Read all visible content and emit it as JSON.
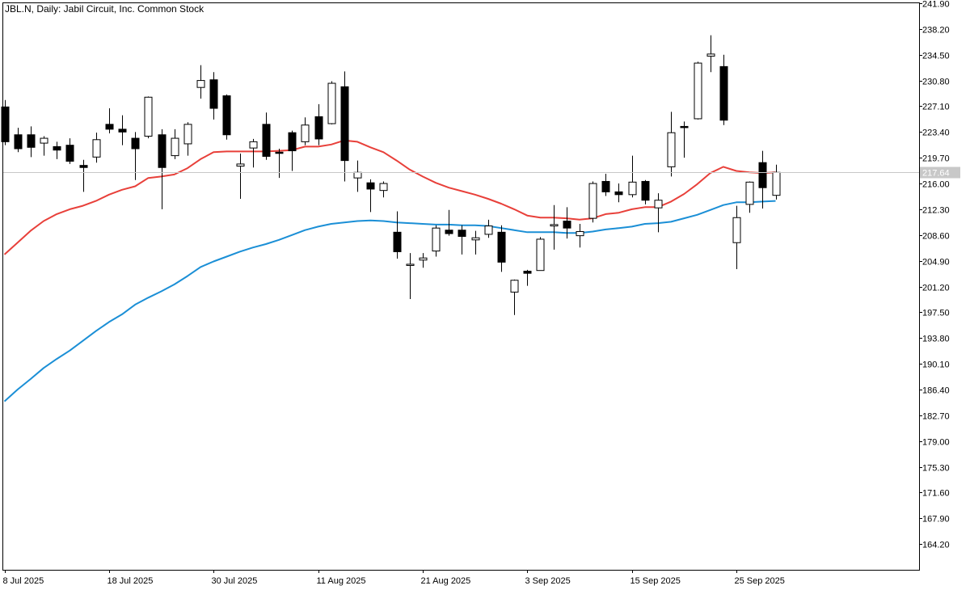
{
  "chart_data": {
    "type": "candlestick",
    "title": "JBL.N, Daily:  Jabil Circuit, Inc. Common Stock",
    "current_price": 217.64,
    "y_ticks": [
      "241.90",
      "238.20",
      "234.50",
      "230.80",
      "227.10",
      "223.40",
      "219.70",
      "216.00",
      "212.30",
      "208.60",
      "204.90",
      "201.20",
      "197.50",
      "193.80",
      "190.10",
      "186.40",
      "182.70",
      "179.00",
      "175.30",
      "171.60",
      "167.90",
      "164.20"
    ],
    "ylim": [
      160.5,
      241.9
    ],
    "x_labels": [
      {
        "index": 0,
        "label": "8 Jul 2025"
      },
      {
        "index": 8,
        "label": "18 Jul 2025"
      },
      {
        "index": 16,
        "label": "30 Jul 2025"
      },
      {
        "index": 24,
        "label": "11 Aug 2025"
      },
      {
        "index": 32,
        "label": "21 Aug 2025"
      },
      {
        "index": 40,
        "label": "3 Sep 2025"
      },
      {
        "index": 48,
        "label": "15 Sep 2025"
      },
      {
        "index": 56,
        "label": "25 Sep 2025"
      }
    ],
    "candles": [
      {
        "o": 227.0,
        "h": 228.0,
        "l": 221.5,
        "c": 222.0
      },
      {
        "o": 223.0,
        "h": 224.0,
        "l": 220.5,
        "c": 221.0
      },
      {
        "o": 223.0,
        "h": 224.2,
        "l": 219.8,
        "c": 221.2
      },
      {
        "o": 221.8,
        "h": 222.8,
        "l": 220.0,
        "c": 222.5
      },
      {
        "o": 221.3,
        "h": 222.0,
        "l": 219.5,
        "c": 220.8
      },
      {
        "o": 221.5,
        "h": 222.5,
        "l": 218.8,
        "c": 219.2
      },
      {
        "o": 218.6,
        "h": 219.4,
        "l": 214.8,
        "c": 218.3
      },
      {
        "o": 219.8,
        "h": 223.3,
        "l": 219.0,
        "c": 222.3
      },
      {
        "o": 224.5,
        "h": 226.8,
        "l": 223.2,
        "c": 223.8
      },
      {
        "o": 223.8,
        "h": 225.8,
        "l": 221.5,
        "c": 223.4
      },
      {
        "o": 222.5,
        "h": 223.4,
        "l": 216.5,
        "c": 221.0
      },
      {
        "o": 222.8,
        "h": 228.5,
        "l": 222.5,
        "c": 228.4
      },
      {
        "o": 223.0,
        "h": 223.8,
        "l": 212.3,
        "c": 218.3
      },
      {
        "o": 220.0,
        "h": 223.8,
        "l": 219.5,
        "c": 222.5
      },
      {
        "o": 221.7,
        "h": 224.8,
        "l": 220.0,
        "c": 224.5
      },
      {
        "o": 229.8,
        "h": 233.0,
        "l": 228.2,
        "c": 230.8
      },
      {
        "o": 230.9,
        "h": 232.0,
        "l": 225.2,
        "c": 226.8
      },
      {
        "o": 228.6,
        "h": 228.8,
        "l": 222.3,
        "c": 223.0
      },
      {
        "o": 218.5,
        "h": 220.3,
        "l": 213.8,
        "c": 218.8
      },
      {
        "o": 221.1,
        "h": 222.4,
        "l": 218.3,
        "c": 222.0
      },
      {
        "o": 224.5,
        "h": 226.2,
        "l": 219.4,
        "c": 219.9
      },
      {
        "o": 220.5,
        "h": 221.0,
        "l": 216.8,
        "c": 220.4
      },
      {
        "o": 223.3,
        "h": 223.6,
        "l": 217.8,
        "c": 220.7
      },
      {
        "o": 222.0,
        "h": 225.5,
        "l": 221.5,
        "c": 224.4
      },
      {
        "o": 225.6,
        "h": 227.4,
        "l": 221.5,
        "c": 222.4
      },
      {
        "o": 224.6,
        "h": 230.7,
        "l": 224.5,
        "c": 230.4
      },
      {
        "o": 229.9,
        "h": 232.1,
        "l": 216.3,
        "c": 219.3
      },
      {
        "o": 216.8,
        "h": 219.3,
        "l": 214.8,
        "c": 217.6
      },
      {
        "o": 216.1,
        "h": 216.6,
        "l": 211.9,
        "c": 215.2
      },
      {
        "o": 215.0,
        "h": 216.3,
        "l": 214.0,
        "c": 216.0
      },
      {
        "o": 209.0,
        "h": 212.0,
        "l": 205.2,
        "c": 206.2
      },
      {
        "o": 204.4,
        "h": 206.0,
        "l": 199.4,
        "c": 204.4
      },
      {
        "o": 205.0,
        "h": 206.0,
        "l": 203.9,
        "c": 205.3
      },
      {
        "o": 206.3,
        "h": 210.0,
        "l": 205.5,
        "c": 209.6
      },
      {
        "o": 209.3,
        "h": 212.2,
        "l": 208.5,
        "c": 208.8
      },
      {
        "o": 209.3,
        "h": 210.0,
        "l": 205.8,
        "c": 208.4
      },
      {
        "o": 207.9,
        "h": 209.2,
        "l": 205.8,
        "c": 208.2
      },
      {
        "o": 208.7,
        "h": 210.8,
        "l": 208.2,
        "c": 209.9
      },
      {
        "o": 209.0,
        "h": 210.0,
        "l": 203.3,
        "c": 204.7
      },
      {
        "o": 200.4,
        "h": 202.2,
        "l": 197.1,
        "c": 202.1
      },
      {
        "o": 203.4,
        "h": 203.6,
        "l": 201.3,
        "c": 203.1
      },
      {
        "o": 203.5,
        "h": 208.3,
        "l": 203.5,
        "c": 208.0
      },
      {
        "o": 209.9,
        "h": 212.9,
        "l": 206.5,
        "c": 210.1
      },
      {
        "o": 210.6,
        "h": 212.6,
        "l": 208.1,
        "c": 209.6
      },
      {
        "o": 208.5,
        "h": 210.2,
        "l": 206.8,
        "c": 209.1
      },
      {
        "o": 211.0,
        "h": 216.3,
        "l": 210.4,
        "c": 216.0
      },
      {
        "o": 216.3,
        "h": 217.4,
        "l": 214.2,
        "c": 214.8
      },
      {
        "o": 214.8,
        "h": 216.0,
        "l": 213.3,
        "c": 214.4
      },
      {
        "o": 214.4,
        "h": 220.0,
        "l": 214.0,
        "c": 216.2
      },
      {
        "o": 216.3,
        "h": 216.5,
        "l": 213.0,
        "c": 213.6
      },
      {
        "o": 212.5,
        "h": 214.6,
        "l": 209.0,
        "c": 213.6
      },
      {
        "o": 218.4,
        "h": 226.3,
        "l": 217.0,
        "c": 223.3
      },
      {
        "o": 224.2,
        "h": 224.9,
        "l": 219.7,
        "c": 224.1
      },
      {
        "o": 225.3,
        "h": 233.5,
        "l": 225.2,
        "c": 233.3
      },
      {
        "o": 234.3,
        "h": 237.3,
        "l": 232.0,
        "c": 234.6
      },
      {
        "o": 232.8,
        "h": 234.5,
        "l": 224.4,
        "c": 225.1
      },
      {
        "o": 207.5,
        "h": 212.8,
        "l": 203.7,
        "c": 211.1
      },
      {
        "o": 213.0,
        "h": 216.3,
        "l": 211.8,
        "c": 216.2
      },
      {
        "o": 219.0,
        "h": 220.7,
        "l": 212.4,
        "c": 215.4
      },
      {
        "o": 214.3,
        "h": 218.7,
        "l": 213.7,
        "c": 217.6
      }
    ],
    "ma_fast": {
      "color": "#e8403a",
      "values": [
        205.8,
        207.5,
        209.2,
        210.6,
        211.6,
        212.3,
        212.8,
        213.5,
        214.4,
        215.1,
        215.6,
        216.8,
        217.0,
        217.3,
        218.2,
        219.5,
        220.5,
        220.6,
        220.6,
        220.6,
        220.6,
        220.7,
        220.8,
        221.3,
        221.3,
        221.6,
        222.2,
        222.0,
        221.2,
        220.5,
        219.3,
        218.0,
        217.0,
        216.1,
        215.4,
        214.9,
        214.4,
        213.8,
        213.1,
        212.3,
        211.4,
        211.1,
        211.1,
        211.0,
        210.8,
        211.0,
        211.6,
        211.8,
        212.3,
        212.6,
        212.6,
        213.4,
        214.5,
        215.9,
        217.5,
        218.4,
        217.8,
        217.6,
        217.5,
        217.6
      ]
    },
    "ma_slow": {
      "color": "#1b8fd6",
      "values": [
        184.7,
        186.4,
        187.9,
        189.5,
        190.8,
        192.0,
        193.4,
        194.8,
        196.1,
        197.2,
        198.6,
        199.6,
        200.5,
        201.5,
        202.7,
        204.0,
        204.8,
        205.5,
        206.2,
        206.8,
        207.3,
        207.9,
        208.6,
        209.3,
        209.8,
        210.2,
        210.4,
        210.6,
        210.7,
        210.6,
        210.4,
        210.3,
        210.2,
        210.1,
        210.1,
        210.0,
        210.0,
        209.9,
        209.6,
        209.3,
        209.0,
        209.0,
        209.0,
        208.9,
        208.9,
        209.1,
        209.4,
        209.6,
        209.8,
        210.2,
        210.3,
        210.5,
        211.0,
        211.5,
        212.2,
        212.9,
        213.3,
        213.3,
        213.4,
        213.5
      ]
    }
  }
}
